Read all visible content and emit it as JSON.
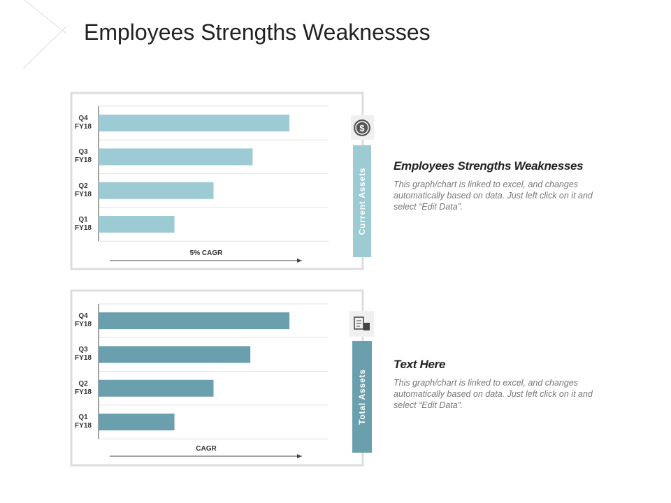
{
  "title": "Employees Strengths Weaknesses",
  "chart_data": [
    {
      "type": "bar",
      "orientation": "horizontal",
      "label": "Current Assets",
      "xlabel": "5% CAGR",
      "categories": [
        "Q4 FY18",
        "Q3 FY18",
        "Q2 FY18",
        "Q1 FY18"
      ],
      "values": [
        83,
        67,
        50,
        33
      ],
      "color": "#9ccbd3",
      "xlim": [
        0,
        100
      ],
      "grid": true
    },
    {
      "type": "bar",
      "orientation": "horizontal",
      "label": "Total Assets",
      "xlabel": "CAGR",
      "categories": [
        "Q4 FY18",
        "Q3 FY18",
        "Q2 FY18",
        "Q1 FY18"
      ],
      "values": [
        83,
        66,
        50,
        33
      ],
      "color": "#6a9fad",
      "xlim": [
        0,
        100
      ],
      "grid": true
    }
  ],
  "sections": [
    {
      "heading": "Employees Strengths Weaknesses",
      "body": "This graph/chart is linked to excel, and changes automatically based on data. Just left click on it and select “Edit Data”."
    },
    {
      "heading": "Text Here",
      "body": "This graph/chart is linked to excel, and changes automatically based on data. Just left click on it and select “Edit Data”."
    }
  ]
}
